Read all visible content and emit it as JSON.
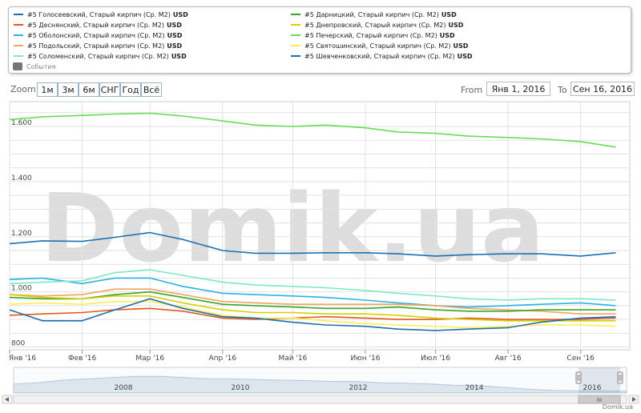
{
  "legend": {
    "items": [
      {
        "label": "#5 Голосеевский, Старый кирпич (Ср. М2)",
        "unit": "USD",
        "color": "#1a73b5"
      },
      {
        "label": "#5 Деснянский, Старый кирпич (Ср. М2)",
        "unit": "USD",
        "color": "#e05a1c"
      },
      {
        "label": "#5 Оболонский, Старый кирпич (Ср. М2)",
        "unit": "USD",
        "color": "#2ab3e6"
      },
      {
        "label": "#5 Подольский, Старый кирпич (Ср. М2)",
        "unit": "USD",
        "color": "#f2a35e"
      },
      {
        "label": "#5 Соломенский, Старый кирпич (Ср. М2)",
        "unit": "USD",
        "color": "#7de8c8"
      },
      {
        "label": "#5 Дарницкий, Старый кирпич (Ср. М2)",
        "unit": "USD",
        "color": "#3aa52a"
      },
      {
        "label": "#5 Днепровский, Старый кирпич (Ср. М2)",
        "unit": "USD",
        "color": "#d8cf00"
      },
      {
        "label": "#5 Печерский, Старый кирпич (Ср. М2)",
        "unit": "USD",
        "color": "#66dd55"
      },
      {
        "label": "#5 Святошинский, Старый кирпич (Ср. М2)",
        "unit": "USD",
        "color": "#ffee55"
      },
      {
        "label": "#5 Шевченковский, Старый кирпич (Ср. М2)",
        "unit": "USD",
        "color": "#1f6fb0"
      }
    ],
    "events_label": "События",
    "events_color": "#777777"
  },
  "toolbar": {
    "zoom_label": "Zoom",
    "buttons": [
      "1м",
      "3м",
      "6м",
      "СНГ",
      "Год",
      "Всё"
    ],
    "from_label": "From",
    "from_value": "Янв 1, 2016",
    "to_label": "To",
    "to_value": "Сен 16, 2016"
  },
  "watermark": "Domik.ua",
  "credit": "Domik.ua",
  "navigator": {
    "years": [
      "2008",
      "2010",
      "2012",
      "2014",
      "2016"
    ]
  },
  "chart_data": {
    "type": "line",
    "x": [
      "2016-01-01",
      "2016-01-15",
      "2016-02-01",
      "2016-02-15",
      "2016-03-01",
      "2016-03-15",
      "2016-04-01",
      "2016-04-15",
      "2016-05-01",
      "2016-05-15",
      "2016-06-01",
      "2016-06-15",
      "2016-07-01",
      "2016-07-15",
      "2016-08-01",
      "2016-08-15",
      "2016-09-01",
      "2016-09-16"
    ],
    "x_tick_labels": [
      "Янв '16",
      "Фев '16",
      "Мар '16",
      "Апр '16",
      "Май '16",
      "Июн '16",
      "Июл '16",
      "Авг '16",
      "Сен '16"
    ],
    "y_tick_labels": [
      "800",
      "1.000",
      "1.200",
      "1.400",
      "1.600"
    ],
    "ylim": [
      790,
      1690
    ],
    "grid": true,
    "series": [
      {
        "name": "#5 Голосеевский, Старый кирпич (Ср. М2)",
        "color": "#1a73b5",
        "values": [
          1175,
          1185,
          1183,
          1198,
          1215,
          1190,
          1150,
          1140,
          1140,
          1142,
          1142,
          1138,
          1130,
          1135,
          1138,
          1138,
          1130,
          1142
        ]
      },
      {
        "name": "#5 Деснянский, Старый кирпич (Ср. М2)",
        "color": "#e05a1c",
        "values": [
          915,
          920,
          925,
          935,
          940,
          930,
          905,
          900,
          905,
          910,
          905,
          900,
          900,
          905,
          900,
          900,
          900,
          905
        ]
      },
      {
        "name": "#5 Оболонский, Старый кирпич (Ср. М2)",
        "color": "#2ab3e6",
        "values": [
          1045,
          1050,
          1030,
          1050,
          1050,
          1020,
          995,
          990,
          985,
          980,
          970,
          960,
          950,
          945,
          950,
          955,
          960,
          950
        ]
      },
      {
        "name": "#5 Подольский, Старый кирпич (Ср. М2)",
        "color": "#f2a35e",
        "values": [
          990,
          985,
          990,
          1010,
          1010,
          990,
          965,
          960,
          955,
          955,
          955,
          955,
          950,
          940,
          935,
          930,
          920,
          920
        ]
      },
      {
        "name": "#5 Соломенский, Старый кирпич (Ср. М2)",
        "color": "#7de8c8",
        "values": [
          1030,
          1035,
          1040,
          1070,
          1080,
          1060,
          1035,
          1025,
          1020,
          1015,
          1005,
          995,
          985,
          975,
          970,
          975,
          975,
          970
        ]
      },
      {
        "name": "#5 Дарницкий, Старый кирпич (Ср. М2)",
        "color": "#3aa52a",
        "values": [
          980,
          975,
          975,
          990,
          1000,
          980,
          955,
          950,
          945,
          940,
          940,
          945,
          935,
          930,
          930,
          935,
          935,
          935
        ]
      },
      {
        "name": "#5 Днепровский, Старый кирпич (Ср. М2)",
        "color": "#d8cf00",
        "values": [
          990,
          980,
          975,
          985,
          985,
          960,
          935,
          925,
          925,
          920,
          920,
          915,
          905,
          900,
          895,
          895,
          895,
          895
        ]
      },
      {
        "name": "#5 Печерский, Старый кирпич (Ср. М2)",
        "color": "#66dd55",
        "values": [
          1625,
          1635,
          1640,
          1645,
          1648,
          1638,
          1620,
          1605,
          1600,
          1605,
          1595,
          1580,
          1575,
          1565,
          1560,
          1555,
          1545,
          1525
        ]
      },
      {
        "name": "#5 Святошинский, Старый кирпич (Ср. М2)",
        "color": "#ffee55",
        "values": [
          955,
          960,
          955,
          965,
          965,
          945,
          915,
          905,
          905,
          895,
          885,
          880,
          875,
          870,
          875,
          880,
          880,
          875
        ]
      },
      {
        "name": "#5 Шевченковский, Старый кирпич (Ср. М2)",
        "color": "#1f6fb0",
        "values": [
          935,
          895,
          895,
          935,
          975,
          940,
          910,
          905,
          890,
          880,
          875,
          865,
          860,
          865,
          870,
          890,
          905,
          910
        ]
      }
    ]
  }
}
